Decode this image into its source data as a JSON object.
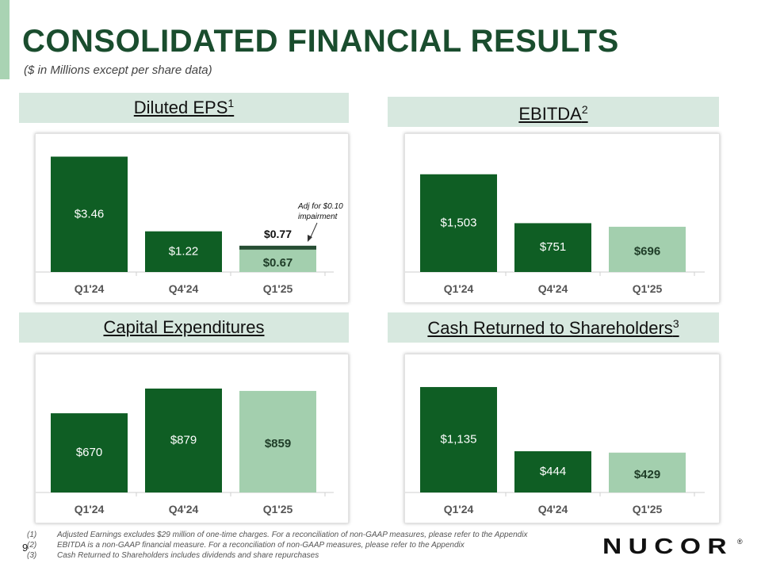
{
  "header": {
    "title": "CONSOLIDATED FINANCIAL RESULTS",
    "subtitle": "($ in Millions except per share data)"
  },
  "chart_data": [
    {
      "type": "bar",
      "title": "Diluted EPS",
      "title_sup": "1",
      "categories": [
        "Q1'24",
        "Q4'24",
        "Q1'25"
      ],
      "values": [
        3.46,
        1.22,
        0.67
      ],
      "labels": [
        "$3.46",
        "$1.22",
        "$0.67"
      ],
      "ylim": [
        0,
        3.9
      ],
      "colors": [
        "#0f5e24",
        "#0f5e24",
        "#a3cfae"
      ],
      "stack": {
        "index": 2,
        "value": 0.1,
        "label": "$0.77",
        "color": "#264d33"
      },
      "annotation": {
        "line1": "Adj for $0.10",
        "line2": "impairment"
      }
    },
    {
      "type": "bar",
      "title": "EBITDA",
      "title_sup": "2",
      "categories": [
        "Q1'24",
        "Q4'24",
        "Q1'25"
      ],
      "values": [
        1503,
        751,
        696
      ],
      "labels": [
        "$1,503",
        "$751",
        "$696"
      ],
      "ylim": [
        0,
        2000
      ],
      "colors": [
        "#0f5e24",
        "#0f5e24",
        "#a3cfae"
      ]
    },
    {
      "type": "bar",
      "title": "Capital Expenditures",
      "title_sup": "",
      "categories": [
        "Q1'24",
        "Q4'24",
        "Q1'25"
      ],
      "values": [
        670,
        879,
        859
      ],
      "labels": [
        "$670",
        "$879",
        "$859"
      ],
      "ylim": [
        0,
        1100
      ],
      "colors": [
        "#0f5e24",
        "#0f5e24",
        "#a3cfae"
      ]
    },
    {
      "type": "bar",
      "title": "Cash Returned to Shareholders",
      "title_sup": "3",
      "categories": [
        "Q1'24",
        "Q4'24",
        "Q1'25"
      ],
      "values": [
        1135,
        444,
        429
      ],
      "labels": [
        "$1,135",
        "$444",
        "$429"
      ],
      "ylim": [
        0,
        1400
      ],
      "colors": [
        "#0f5e24",
        "#0f5e24",
        "#a3cfae"
      ]
    }
  ],
  "footnotes": [
    {
      "num": "(1)",
      "text": "Adjusted Earnings excludes $29 million of one-time charges. For a reconciliation of non-GAAP measures, please refer to the Appendix"
    },
    {
      "num": "(2)",
      "text": "EBITDA is a non-GAAP financial measure. For a reconciliation of non-GAAP measures, please refer to the Appendix"
    },
    {
      "num": "(3)",
      "text": "Cash Returned to Shareholders includes dividends and share repurchases"
    }
  ],
  "page_number": "9",
  "logo": {
    "text": "NUCOR",
    "registered": "®"
  }
}
